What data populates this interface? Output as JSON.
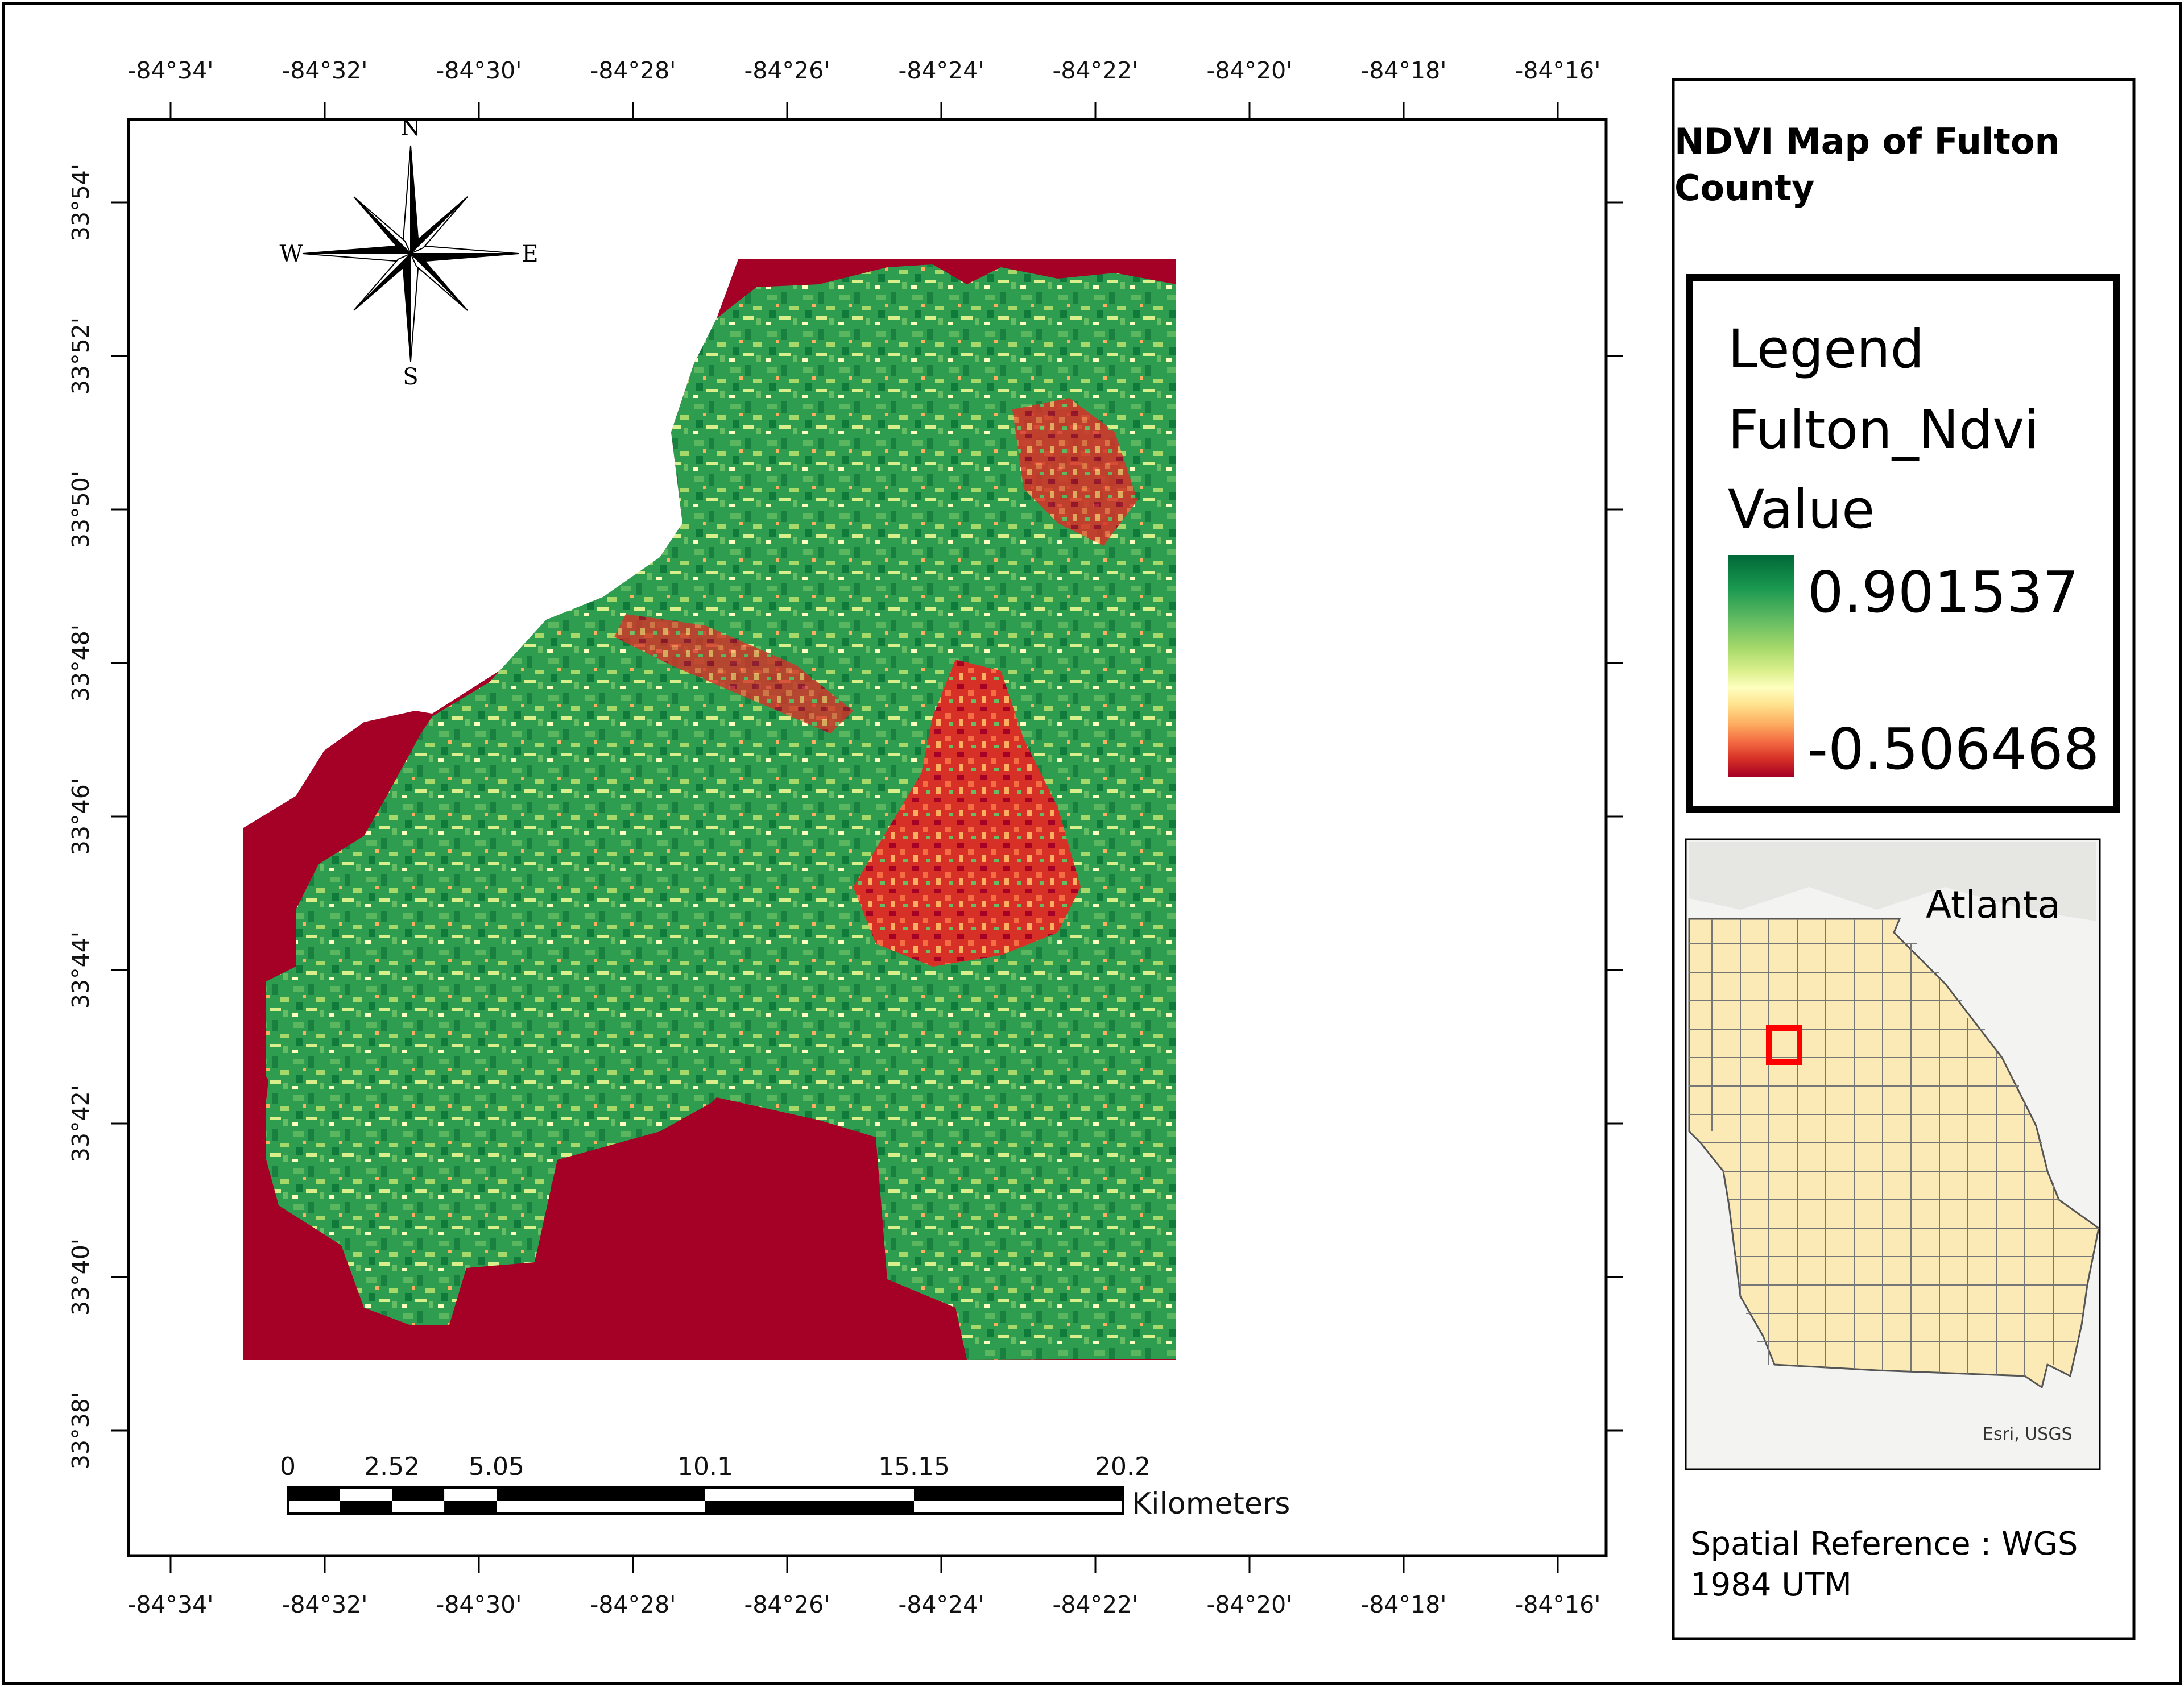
{
  "title": "NDVI Map of Fulton County",
  "title_lines": [
    "NDVI Map of Fulton",
    "County"
  ],
  "legend": {
    "heading": "Legend",
    "layer": "Fulton_Ndvi",
    "field": "Value",
    "max_label": "0.901537",
    "min_label": "-0.506468",
    "ramp_colors": [
      "#006837",
      "#1a9850",
      "#66bd63",
      "#a6d96a",
      "#d9ef8b",
      "#ffffbf",
      "#fee08b",
      "#fdae61",
      "#f46d43",
      "#d73027",
      "#a50026"
    ]
  },
  "longitude_labels": [
    "-84°34'",
    "-84°32'",
    "-84°30'",
    "-84°28'",
    "-84°26'",
    "-84°24'",
    "-84°22'",
    "-84°20'",
    "-84°18'",
    "-84°16'"
  ],
  "latitude_labels": [
    "33°54'",
    "33°52'",
    "33°50'",
    "33°48'",
    "33°46'",
    "33°44'",
    "33°42'",
    "33°40'",
    "33°38'"
  ],
  "compass": {
    "n": "N",
    "s": "S",
    "e": "E",
    "w": "W"
  },
  "scale_bar": {
    "labels": [
      "0",
      "2.52",
      "5.05",
      "10.1",
      "15.15",
      "20.2"
    ],
    "unit": "Kilometers"
  },
  "inset": {
    "city": "Atlanta",
    "credit": "Esri, USGS"
  },
  "spatial_reference": {
    "line1": "Spatial Reference : WGS",
    "line2": "1984 UTM"
  },
  "colors": {
    "ndvi_low": "#a50026",
    "ndvi_high": "#006837",
    "inset_land": "#fbe9b6",
    "inset_highlight": "#ff0000"
  }
}
